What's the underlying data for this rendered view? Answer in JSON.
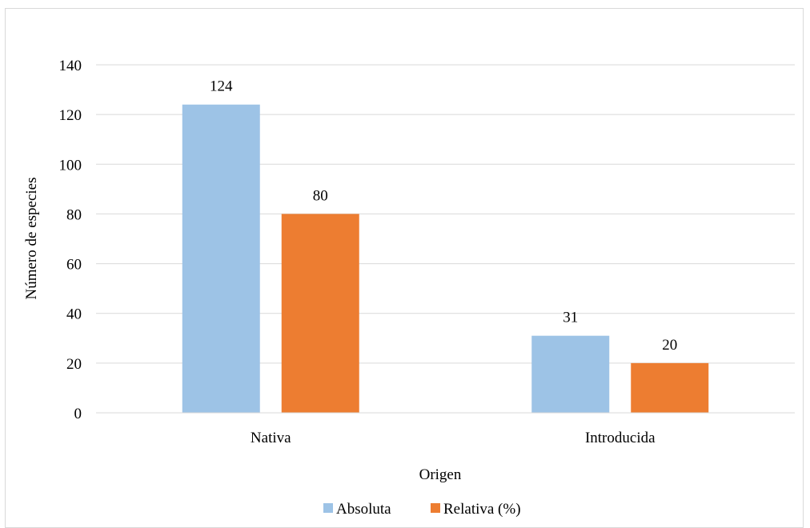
{
  "chart_data": {
    "type": "bar",
    "title": "",
    "xlabel": "Origen",
    "ylabel": "Número de especies",
    "categories": [
      "Nativa",
      "Introducida"
    ],
    "series": [
      {
        "name": "Absoluta",
        "values": [
          124,
          31
        ],
        "color": "#9DC3E6"
      },
      {
        "name": "Relativa (%)",
        "values": [
          80,
          20
        ],
        "color": "#ED7D31"
      }
    ],
    "ylim": [
      0,
      140
    ],
    "yticks": [
      0,
      20,
      40,
      60,
      80,
      100,
      120,
      140
    ],
    "grid": true,
    "legend_position": "bottom",
    "data_labels": true
  }
}
